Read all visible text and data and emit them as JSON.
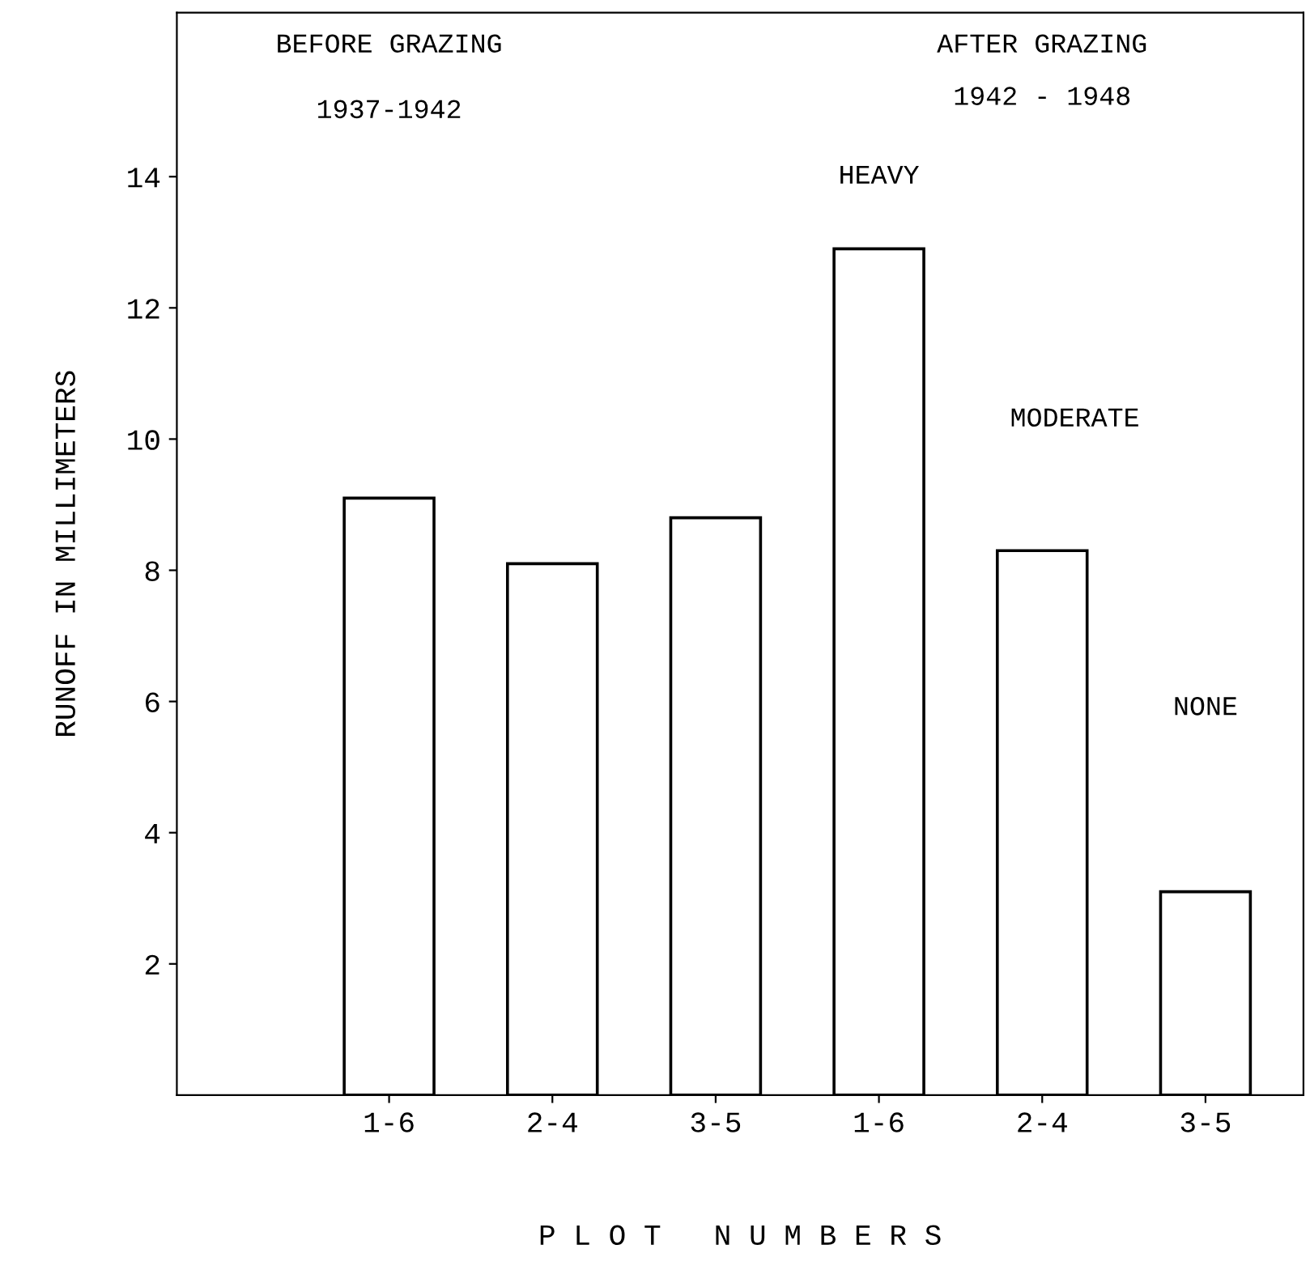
{
  "chart_data": {
    "type": "bar",
    "categories": [
      "1-6",
      "2-4",
      "3-5",
      "1-6",
      "2-4",
      "3-5"
    ],
    "values": [
      9.1,
      8.1,
      8.8,
      12.9,
      8.3,
      3.1
    ],
    "colors": [
      "#ffffff",
      "#ffffff",
      "#ffffff",
      "#ffffff",
      "#ffffff",
      "#ffffff"
    ],
    "ylim": [
      0,
      16.5
    ],
    "yticks": [
      2,
      4,
      6,
      8,
      10,
      12,
      14
    ],
    "xlabel": "P L O T   N U M B E R S",
    "ylabel": "RUNOFF IN MILLIMETERS",
    "annotations": [
      "BEFORE GRAZING",
      "1937-1942",
      "AFTER GRAZING",
      "1942 - 1948",
      "HEAVY",
      "MODERATE",
      "NONE"
    ],
    "grid": false,
    "legend": false
  }
}
